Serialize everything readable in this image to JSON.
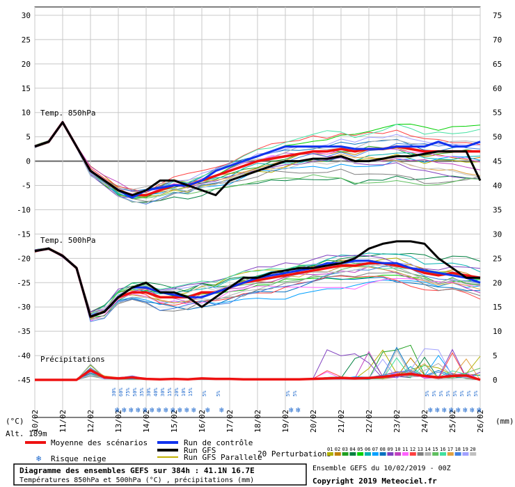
{
  "chart_data": {
    "type": "line",
    "title": "Diagramme des ensembles GEFS sur 384h : 41.1N 16.7E",
    "subtitle": "Températures 850hPa et 500hPa (°C) , précipitations (mm)",
    "left_axis": {
      "unit": "(°C)",
      "ticks": [
        30,
        25,
        20,
        15,
        10,
        5,
        0,
        -5,
        -10,
        -15,
        -20,
        -25,
        -30,
        -35,
        -40,
        -45
      ],
      "range": [
        -45,
        30
      ]
    },
    "right_axis": {
      "unit": "(mm)",
      "ticks": [
        75,
        70,
        65,
        60,
        55,
        50,
        45,
        40,
        35,
        30,
        25,
        20,
        15,
        10,
        5,
        0
      ],
      "range": [
        0,
        75
      ]
    },
    "x_ticks": [
      "10/02",
      "11/02",
      "12/02",
      "13/02",
      "14/02",
      "15/02",
      "16/02",
      "17/02",
      "18/02",
      "19/02",
      "20/02",
      "21/02",
      "22/02",
      "23/02",
      "24/02",
      "25/02",
      "26/02"
    ],
    "alt_label": "Alt. 189m",
    "section_labels": {
      "t850": "Temp. 850hPa",
      "t500": "Temp. 500hPa",
      "precip": "Précipitations"
    },
    "snow_risk": [
      {
        "day": 13.0,
        "pct": "30%"
      },
      {
        "day": 13.25,
        "pct": "60%"
      },
      {
        "day": 13.5,
        "pct": "75%"
      },
      {
        "day": 13.75,
        "pct": "50%"
      },
      {
        "day": 14.0,
        "pct": "35%"
      },
      {
        "day": 14.25,
        "pct": "30%"
      },
      {
        "day": 14.5,
        "pct": "40%"
      },
      {
        "day": 14.75,
        "pct": "30%"
      },
      {
        "day": 15.0,
        "pct": "15%"
      },
      {
        "day": 15.25,
        "pct": "20%"
      },
      {
        "day": 15.5,
        "pct": "10%"
      },
      {
        "day": 15.75,
        "pct": "15%"
      },
      {
        "day": 16.25,
        "pct": "5%"
      },
      {
        "day": 16.75,
        "pct": "5%"
      },
      {
        "day": 19.25,
        "pct": "5%"
      },
      {
        "day": 19.5,
        "pct": "5%"
      },
      {
        "day": 24.25,
        "pct": "5%"
      },
      {
        "day": 24.5,
        "pct": "5%"
      },
      {
        "day": 24.75,
        "pct": "5%"
      },
      {
        "day": 25.0,
        "pct": "5%"
      },
      {
        "day": 25.25,
        "pct": "5%"
      },
      {
        "day": 25.5,
        "pct": "5%"
      },
      {
        "day": 25.75,
        "pct": "5%"
      },
      {
        "day": 26.0,
        "pct": "5%"
      }
    ],
    "series": [
      {
        "name": "Moyenne des scénarios",
        "color": "#ee1111",
        "group": "t850",
        "x": [
          10,
          10.5,
          11,
          11.5,
          12,
          12.5,
          13,
          13.5,
          14,
          14.5,
          15,
          15.5,
          16,
          16.5,
          17,
          17.5,
          18,
          18.5,
          19,
          19.5,
          20,
          20.5,
          21,
          21.5,
          22,
          22.5,
          23,
          23.5,
          24,
          24.5,
          25,
          25.5,
          26
        ],
        "y": [
          3,
          4,
          8,
          3,
          -2,
          -4,
          -6,
          -7,
          -7,
          -6,
          -5,
          -5,
          -4,
          -3,
          -2,
          -1,
          0,
          0.5,
          1,
          1.5,
          2,
          2,
          2.5,
          2,
          2.5,
          2.5,
          3,
          2.5,
          2,
          2,
          2,
          2,
          2
        ]
      },
      {
        "name": "Run de contrôle",
        "color": "#1133ee",
        "group": "t850",
        "x": [
          10,
          10.5,
          11,
          11.5,
          12,
          12.5,
          13,
          13.5,
          14,
          14.5,
          15,
          15.5,
          16,
          16.5,
          17,
          17.5,
          18,
          18.5,
          19,
          19.5,
          20,
          20.5,
          21,
          21.5,
          22,
          22.5,
          23,
          23.5,
          24,
          24.5,
          25,
          25.5,
          26
        ],
        "y": [
          3,
          4,
          8,
          3,
          -2,
          -4,
          -6,
          -7.5,
          -6,
          -5.5,
          -5,
          -5,
          -4,
          -2,
          -1,
          0,
          1,
          2,
          3,
          3,
          3,
          3,
          3,
          2.5,
          2.5,
          2.5,
          3,
          3,
          3,
          4,
          3,
          3,
          4
        ]
      },
      {
        "name": "Run GFS",
        "color": "#000000",
        "group": "t850",
        "x": [
          10,
          10.5,
          11,
          11.5,
          12,
          12.5,
          13,
          13.5,
          14,
          14.5,
          15,
          15.5,
          16,
          16.5,
          17,
          17.5,
          18,
          18.5,
          19,
          19.5,
          20,
          20.5,
          21,
          21.5,
          22,
          22.5,
          23,
          23.5,
          24,
          24.5,
          25,
          25.5,
          26
        ],
        "y": [
          3,
          4,
          8,
          3,
          -2,
          -4,
          -6,
          -7,
          -6,
          -4,
          -4,
          -5,
          -6,
          -7,
          -4,
          -3,
          -2,
          -1,
          0,
          0,
          0.5,
          0.5,
          1,
          0,
          0,
          0.5,
          1,
          1,
          1.5,
          2,
          2,
          2,
          -4
        ]
      },
      {
        "name": "Moyenne 500",
        "color": "#ee1111",
        "group": "t500",
        "x": [
          10,
          10.5,
          11,
          11.5,
          12,
          12.5,
          13,
          13.5,
          14,
          14.5,
          15,
          15.5,
          16,
          16.5,
          17,
          17.5,
          18,
          18.5,
          19,
          19.5,
          20,
          20.5,
          21,
          21.5,
          22,
          22.5,
          23,
          23.5,
          24,
          24.5,
          25,
          25.5,
          26
        ],
        "y": [
          -18.5,
          -18,
          -19.5,
          -22,
          -32,
          -31,
          -28,
          -27,
          -27,
          -28,
          -28,
          -28,
          -27,
          -27,
          -26,
          -25,
          -24.5,
          -24,
          -23.5,
          -23,
          -22.5,
          -22,
          -21.5,
          -21.5,
          -21,
          -21,
          -21.5,
          -22,
          -23,
          -23.5,
          -23,
          -23.5,
          -24
        ]
      },
      {
        "name": "Contrôle 500",
        "color": "#1133ee",
        "group": "t500",
        "x": [
          10,
          10.5,
          11,
          11.5,
          12,
          12.5,
          13,
          13.5,
          14,
          14.5,
          15,
          15.5,
          16,
          16.5,
          17,
          17.5,
          18,
          18.5,
          19,
          19.5,
          20,
          20.5,
          21,
          21.5,
          22,
          22.5,
          23,
          23.5,
          24,
          24.5,
          25,
          25.5,
          26
        ],
        "y": [
          -18.5,
          -18,
          -19.5,
          -22,
          -32,
          -31,
          -28,
          -26,
          -26,
          -27,
          -27.5,
          -28,
          -28,
          -27,
          -26,
          -25,
          -24,
          -23.5,
          -23,
          -22.5,
          -22,
          -21,
          -21,
          -20.5,
          -20.5,
          -21,
          -21,
          -22,
          -22.5,
          -23,
          -23.5,
          -24,
          -25
        ]
      },
      {
        "name": "GFS 500",
        "color": "#000000",
        "group": "t500",
        "x": [
          10,
          10.5,
          11,
          11.5,
          12,
          12.5,
          13,
          13.5,
          14,
          14.5,
          15,
          15.5,
          16,
          16.5,
          17,
          17.5,
          18,
          18.5,
          19,
          19.5,
          20,
          20.5,
          21,
          21.5,
          22,
          22.5,
          23,
          23.5,
          24,
          24.5,
          25,
          25.5,
          26
        ],
        "y": [
          -18.5,
          -18,
          -19.5,
          -22,
          -32,
          -31,
          -28,
          -26,
          -25,
          -27,
          -27,
          -28,
          -30,
          -28,
          -26,
          -24,
          -24,
          -23,
          -22.5,
          -22,
          -22,
          -21.5,
          -21,
          -20,
          -18,
          -17,
          -16.5,
          -16.5,
          -17,
          -20,
          -22,
          -24,
          -24
        ]
      },
      {
        "name": "Moyenne précip",
        "color": "#ee1111",
        "group": "precip",
        "x": [
          10,
          10.5,
          11,
          11.5,
          12,
          12.5,
          13,
          13.5,
          14,
          14.5,
          15,
          15.5,
          16,
          16.5,
          17,
          17.5,
          18,
          18.5,
          19,
          19.5,
          20,
          20.5,
          21,
          21.5,
          22,
          22.5,
          23,
          23.5,
          24,
          24.5,
          25,
          25.5,
          26
        ],
        "y": [
          0,
          0,
          0,
          0,
          2,
          0.5,
          0.3,
          0.5,
          0.2,
          0.1,
          0.2,
          0.1,
          0.3,
          0.2,
          0.2,
          0.1,
          0.1,
          0.1,
          0.1,
          0.1,
          0.2,
          0.3,
          0.4,
          0.3,
          0.4,
          0.6,
          1,
          1.2,
          0.8,
          0.5,
          0.8,
          0.9,
          0
        ]
      }
    ],
    "perturbations_label": "20 Perturbations",
    "perturbation_ids": [
      "01",
      "02",
      "03",
      "04",
      "05",
      "06",
      "07",
      "08",
      "09",
      "10",
      "11",
      "12",
      "13",
      "14",
      "15",
      "16",
      "17",
      "18",
      "19",
      "20"
    ],
    "perturbation_colors": [
      "#b0b000",
      "#c08000",
      "#20a020",
      "#008040",
      "#00d000",
      "#00b0b0",
      "#00a0ff",
      "#0070c0",
      "#8040c0",
      "#c040c0",
      "#ff60ff",
      "#ff4040",
      "#808080",
      "#b0b0b0",
      "#60c060",
      "#40e0a0",
      "#e0a040",
      "#4080e0",
      "#a0a0ff",
      "#c0c0c0"
    ]
  },
  "legend": {
    "mean_label": "Moyenne des scénarios",
    "control_label": "Run de contrôle",
    "gfs_label": "Run GFS",
    "gfs_parallel_label": "Run GFS Parallele",
    "snow_label": "Risque neige",
    "mean_color": "#ee1111",
    "control_color": "#1133ee",
    "gfs_color": "#000000",
    "gfs_parallel_color": "#c0b000"
  },
  "footer": {
    "title": "Diagramme des ensembles GEFS sur 384h : 41.1N 16.7E",
    "subtitle": "Températures 850hPa et 500hPa (°C) , précipitations (mm)",
    "run_info": "Ensemble GEFS du 10/02/2019 - 00Z",
    "copyright": "Copyright 2019 Meteociel.fr"
  }
}
